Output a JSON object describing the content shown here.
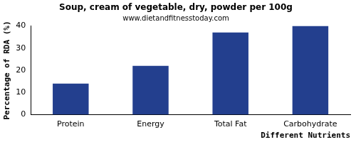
{
  "chart_data": {
    "type": "bar",
    "title": "Soup, cream of vegetable, dry, powder per 100g",
    "subtitle": "www.dietandfitnesstoday.com",
    "x_label": "Different Nutrients",
    "y_label": "Percentage of RDA (%)",
    "categories": [
      "Protein",
      "Energy",
      "Total Fat",
      "Carbohydrate"
    ],
    "values": [
      14,
      22,
      37,
      40
    ],
    "color": "#233f8e",
    "ylim": [
      0,
      40
    ],
    "yticks": [
      0,
      10,
      20,
      30,
      40
    ],
    "grid": false
  }
}
